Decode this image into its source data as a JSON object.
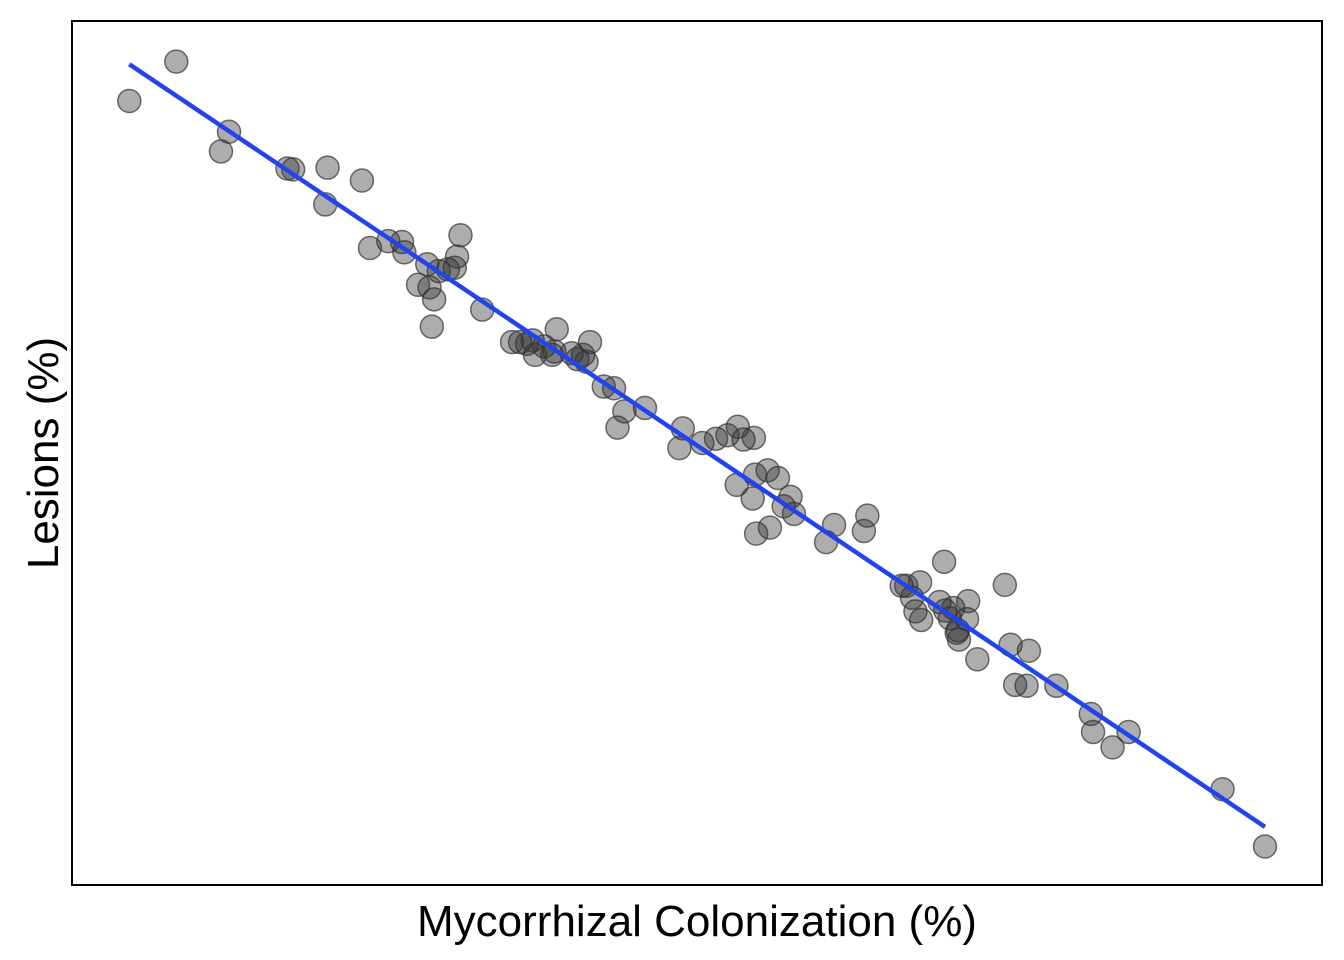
{
  "chart_data": {
    "type": "scatter",
    "title": "",
    "xlabel": "Mycorrhizal Colonization (%)",
    "ylabel": "Lesions (%)",
    "show_ticks": false,
    "grid": false,
    "legend": "none",
    "xlim": [
      0,
      100
    ],
    "ylim": [
      0,
      100
    ],
    "points": [
      {
        "x": 5.0,
        "y": 91.7
      },
      {
        "x": 9.1,
        "y": 96.3
      },
      {
        "x": 13.0,
        "y": 85.8
      },
      {
        "x": 13.7,
        "y": 88.1
      },
      {
        "x": 18.8,
        "y": 83.8
      },
      {
        "x": 19.3,
        "y": 83.7
      },
      {
        "x": 22.1,
        "y": 79.6
      },
      {
        "x": 22.3,
        "y": 83.9
      },
      {
        "x": 25.3,
        "y": 82.4
      },
      {
        "x": 26.0,
        "y": 74.5
      },
      {
        "x": 27.6,
        "y": 75.3
      },
      {
        "x": 28.8,
        "y": 75.2
      },
      {
        "x": 29.0,
        "y": 74.0
      },
      {
        "x": 30.2,
        "y": 70.2
      },
      {
        "x": 31.0,
        "y": 72.6
      },
      {
        "x": 31.2,
        "y": 69.9
      },
      {
        "x": 31.4,
        "y": 65.3
      },
      {
        "x": 31.6,
        "y": 68.5
      },
      {
        "x": 32.0,
        "y": 71.8
      },
      {
        "x": 32.8,
        "y": 72.0
      },
      {
        "x": 33.4,
        "y": 72.2
      },
      {
        "x": 33.6,
        "y": 73.5
      },
      {
        "x": 33.9,
        "y": 76.0
      },
      {
        "x": 35.8,
        "y": 67.3
      },
      {
        "x": 38.4,
        "y": 63.5
      },
      {
        "x": 39.1,
        "y": 63.5
      },
      {
        "x": 39.7,
        "y": 63.3
      },
      {
        "x": 40.2,
        "y": 63.7
      },
      {
        "x": 40.4,
        "y": 62.0
      },
      {
        "x": 41.2,
        "y": 63.0
      },
      {
        "x": 41.9,
        "y": 62.0
      },
      {
        "x": 42.1,
        "y": 62.4
      },
      {
        "x": 42.3,
        "y": 65.0
      },
      {
        "x": 43.6,
        "y": 62.2
      },
      {
        "x": 44.1,
        "y": 61.5
      },
      {
        "x": 44.6,
        "y": 62.0
      },
      {
        "x": 44.9,
        "y": 61.2
      },
      {
        "x": 45.2,
        "y": 63.5
      },
      {
        "x": 46.4,
        "y": 58.3
      },
      {
        "x": 47.3,
        "y": 58.1
      },
      {
        "x": 47.6,
        "y": 53.5
      },
      {
        "x": 48.2,
        "y": 55.4
      },
      {
        "x": 50.0,
        "y": 55.8
      },
      {
        "x": 53.0,
        "y": 51.1
      },
      {
        "x": 53.3,
        "y": 53.4
      },
      {
        "x": 55.0,
        "y": 51.7
      },
      {
        "x": 56.2,
        "y": 52.2
      },
      {
        "x": 57.2,
        "y": 52.6
      },
      {
        "x": 58.1,
        "y": 53.6
      },
      {
        "x": 58.6,
        "y": 52.1
      },
      {
        "x": 58.0,
        "y": 46.8
      },
      {
        "x": 59.4,
        "y": 45.2
      },
      {
        "x": 59.5,
        "y": 52.3
      },
      {
        "x": 59.6,
        "y": 48.0
      },
      {
        "x": 59.7,
        "y": 41.1
      },
      {
        "x": 60.7,
        "y": 48.5
      },
      {
        "x": 60.9,
        "y": 41.8
      },
      {
        "x": 61.6,
        "y": 47.6
      },
      {
        "x": 62.1,
        "y": 44.3
      },
      {
        "x": 62.7,
        "y": 45.4
      },
      {
        "x": 63.0,
        "y": 43.4
      },
      {
        "x": 65.8,
        "y": 40.1
      },
      {
        "x": 66.5,
        "y": 42.1
      },
      {
        "x": 69.1,
        "y": 41.4
      },
      {
        "x": 69.4,
        "y": 43.2
      },
      {
        "x": 72.4,
        "y": 35.0
      },
      {
        "x": 72.8,
        "y": 35.0
      },
      {
        "x": 73.3,
        "y": 33.6
      },
      {
        "x": 73.6,
        "y": 32.0
      },
      {
        "x": 74.0,
        "y": 35.4
      },
      {
        "x": 74.1,
        "y": 31.0
      },
      {
        "x": 75.7,
        "y": 33.1
      },
      {
        "x": 76.1,
        "y": 37.8
      },
      {
        "x": 76.2,
        "y": 32.1
      },
      {
        "x": 76.6,
        "y": 31.2
      },
      {
        "x": 76.9,
        "y": 32.4
      },
      {
        "x": 77.2,
        "y": 29.5
      },
      {
        "x": 77.3,
        "y": 29.8
      },
      {
        "x": 77.4,
        "y": 28.7
      },
      {
        "x": 78.1,
        "y": 31.1
      },
      {
        "x": 78.2,
        "y": 33.2
      },
      {
        "x": 79.0,
        "y": 26.4
      },
      {
        "x": 81.4,
        "y": 35.1
      },
      {
        "x": 81.9,
        "y": 28.1
      },
      {
        "x": 82.3,
        "y": 23.4
      },
      {
        "x": 83.3,
        "y": 23.3
      },
      {
        "x": 83.5,
        "y": 27.4
      },
      {
        "x": 85.9,
        "y": 23.3
      },
      {
        "x": 88.9,
        "y": 20.0
      },
      {
        "x": 89.1,
        "y": 17.9
      },
      {
        "x": 90.8,
        "y": 16.1
      },
      {
        "x": 92.2,
        "y": 17.9
      },
      {
        "x": 100.4,
        "y": 11.2
      },
      {
        "x": 104.1,
        "y": 4.5
      }
    ],
    "trend_line": {
      "x1": 5.0,
      "y1": 96.0,
      "x2": 104.1,
      "y2": 6.8,
      "color": "#2244ee"
    },
    "point_color": "#333333",
    "point_opacity": 0.4
  }
}
